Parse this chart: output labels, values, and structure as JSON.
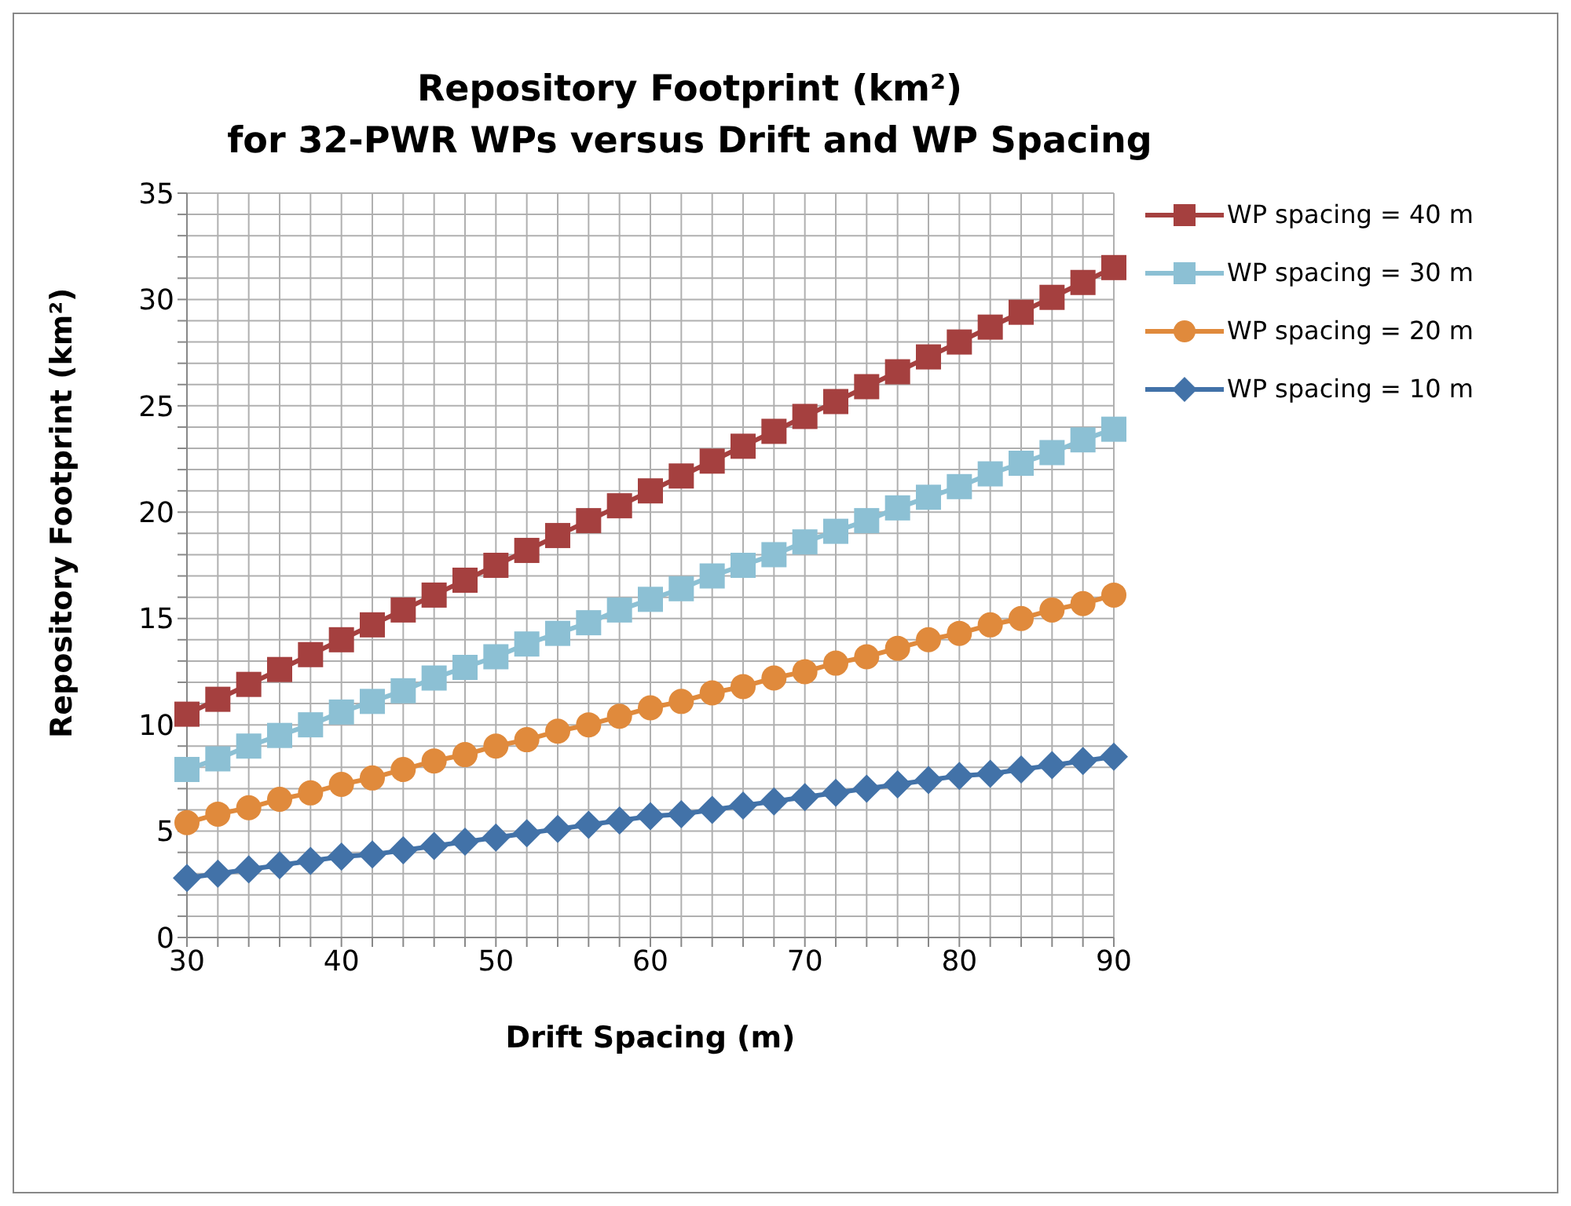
{
  "chart_data": {
    "type": "line",
    "title": "Repository Footprint (km²)\nfor 32-PWR WPs versus Drift and WP Spacing",
    "xlabel": "Drift Spacing (m)",
    "ylabel": "Repository Footprint (km²)",
    "x": [
      30,
      32,
      34,
      36,
      38,
      40,
      42,
      44,
      46,
      48,
      50,
      52,
      54,
      56,
      58,
      60,
      62,
      64,
      66,
      68,
      70,
      72,
      74,
      76,
      78,
      80,
      82,
      84,
      86,
      88,
      90
    ],
    "series": [
      {
        "name": "WP spacing = 40 m",
        "color": "#a5403f",
        "marker": "square",
        "values": [
          10.5,
          11.2,
          11.9,
          12.6,
          13.3,
          14.0,
          14.7,
          15.4,
          16.1,
          16.8,
          17.5,
          18.2,
          18.9,
          19.6,
          20.3,
          21.0,
          21.7,
          22.4,
          23.1,
          23.8,
          24.5,
          25.2,
          25.9,
          26.6,
          27.3,
          28.0,
          28.7,
          29.4,
          30.1,
          30.8,
          31.5
        ]
      },
      {
        "name": "WP spacing = 30 m",
        "color": "#8cc0d4",
        "marker": "square",
        "values": [
          7.9,
          8.4,
          9.0,
          9.5,
          10.0,
          10.6,
          11.1,
          11.6,
          12.2,
          12.7,
          13.2,
          13.8,
          14.3,
          14.8,
          15.4,
          15.9,
          16.4,
          17.0,
          17.5,
          18.0,
          18.6,
          19.1,
          19.6,
          20.2,
          20.7,
          21.2,
          21.8,
          22.3,
          22.8,
          23.4,
          23.9
        ]
      },
      {
        "name": "WP spacing = 20 m",
        "color": "#e08a3c",
        "marker": "circle",
        "values": [
          5.4,
          5.8,
          6.1,
          6.5,
          6.8,
          7.2,
          7.5,
          7.9,
          8.3,
          8.6,
          9.0,
          9.3,
          9.7,
          10.0,
          10.4,
          10.8,
          11.1,
          11.5,
          11.8,
          12.2,
          12.5,
          12.9,
          13.2,
          13.6,
          14.0,
          14.3,
          14.7,
          15.0,
          15.4,
          15.7,
          16.1
        ]
      },
      {
        "name": "WP spacing = 10 m",
        "color": "#4272a8",
        "marker": "diamond",
        "values": [
          2.8,
          3.0,
          3.2,
          3.4,
          3.6,
          3.8,
          3.9,
          4.1,
          4.3,
          4.5,
          4.7,
          4.9,
          5.1,
          5.3,
          5.5,
          5.7,
          5.8,
          6.0,
          6.2,
          6.4,
          6.6,
          6.8,
          7.0,
          7.2,
          7.4,
          7.6,
          7.7,
          7.9,
          8.1,
          8.3,
          8.5
        ]
      }
    ],
    "xlim": [
      30,
      90
    ],
    "xticks": [
      30,
      {
        "value": 32,
        "label": null
      },
      {
        "value": 34,
        "label": null
      },
      {
        "value": 36,
        "label": null
      },
      {
        "value": 38,
        "label": null
      },
      40,
      {
        "value": 42,
        "label": null
      },
      {
        "value": 44,
        "label": null
      },
      {
        "value": 46,
        "label": null
      },
      {
        "value": 48,
        "label": null
      },
      50,
      {
        "value": 52,
        "label": null
      },
      {
        "value": 54,
        "label": null
      },
      {
        "value": 56,
        "label": null
      },
      {
        "value": 58,
        "label": null
      },
      60,
      {
        "value": 62,
        "label": null
      },
      {
        "value": 64,
        "label": null
      },
      {
        "value": 66,
        "label": null
      },
      {
        "value": 68,
        "label": null
      },
      70,
      {
        "value": 72,
        "label": null
      },
      {
        "value": 74,
        "label": null
      },
      {
        "value": 76,
        "label": null
      },
      {
        "value": 78,
        "label": null
      },
      80,
      {
        "value": 82,
        "label": null
      },
      {
        "value": 84,
        "label": null
      },
      {
        "value": 86,
        "label": null
      },
      {
        "value": 88,
        "label": null
      },
      90
    ],
    "ylim": [
      0,
      35
    ],
    "yticks": [
      0,
      {
        "value": 1,
        "label": null
      },
      {
        "value": 2,
        "label": null
      },
      {
        "value": 3,
        "label": null
      },
      {
        "value": 4,
        "label": null
      },
      5,
      {
        "value": 6,
        "label": null
      },
      {
        "value": 7,
        "label": null
      },
      {
        "value": 8,
        "label": null
      },
      {
        "value": 9,
        "label": null
      },
      10,
      {
        "value": 11,
        "label": null
      },
      {
        "value": 12,
        "label": null
      },
      {
        "value": 13,
        "label": null
      },
      {
        "value": 14,
        "label": null
      },
      15,
      {
        "value": 16,
        "label": null
      },
      {
        "value": 17,
        "label": null
      },
      {
        "value": 18,
        "label": null
      },
      {
        "value": 19,
        "label": null
      },
      20,
      {
        "value": 21,
        "label": null
      },
      {
        "value": 22,
        "label": null
      },
      {
        "value": 23,
        "label": null
      },
      {
        "value": 24,
        "label": null
      },
      25,
      {
        "value": 26,
        "label": null
      },
      {
        "value": 27,
        "label": null
      },
      {
        "value": 28,
        "label": null
      },
      {
        "value": 29,
        "label": null
      },
      30,
      {
        "value": 31,
        "label": null
      },
      {
        "value": 32,
        "label": null
      },
      {
        "value": 33,
        "label": null
      },
      {
        "value": 34,
        "label": null
      },
      35
    ],
    "grid": true,
    "legend": "right",
    "line_style": "solid"
  }
}
